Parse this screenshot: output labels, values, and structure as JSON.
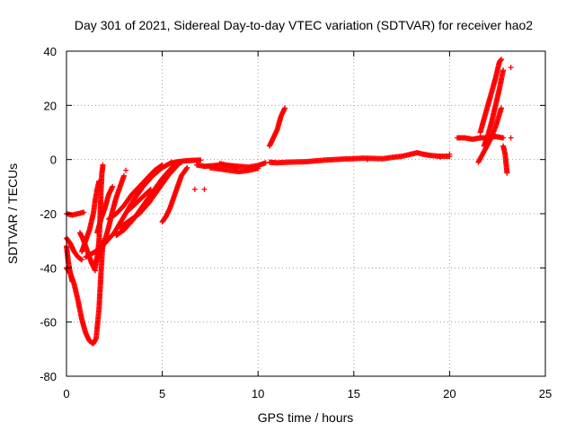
{
  "chart_data": {
    "type": "scatter",
    "title": "Day 301 of 2021, Sidereal Day-to-day VTEC variation (SDTVAR) for receiver hao2",
    "xlabel": "GPS time / hours",
    "ylabel": "SDTVAR / TECUs",
    "xlim": [
      0,
      25
    ],
    "ylim": [
      -80,
      40
    ],
    "x_ticks": [
      0,
      5,
      10,
      15,
      20,
      25
    ],
    "y_ticks": [
      -80,
      -60,
      -40,
      -20,
      0,
      20,
      40
    ],
    "x_tick_labels": [
      "0",
      "5",
      "10",
      "15",
      "20",
      "25"
    ],
    "y_tick_labels": [
      "-80",
      "-60",
      "-40",
      "-20",
      "0",
      "20",
      "40"
    ],
    "grid": true,
    "marker": "plus",
    "color": "#ff0000",
    "series": [
      {
        "tracks": [
          [
            [
              0.0,
              -20
            ],
            [
              0.3,
              -20.5
            ],
            [
              0.6,
              -20
            ],
            [
              0.9,
              -19.5
            ]
          ],
          [
            [
              0.0,
              -40
            ],
            [
              0.2,
              -42
            ],
            [
              0.4,
              -46
            ],
            [
              0.6,
              -52
            ],
            [
              0.8,
              -59
            ],
            [
              1.0,
              -64
            ],
            [
              1.2,
              -67
            ],
            [
              1.4,
              -68
            ],
            [
              1.55,
              -66
            ],
            [
              1.7,
              -55
            ],
            [
              1.8,
              -42
            ],
            [
              1.9,
              -30
            ]
          ],
          [
            [
              0.0,
              -32
            ],
            [
              0.1,
              -38
            ],
            [
              0.2,
              -42
            ],
            [
              0.3,
              -45
            ]
          ],
          [
            [
              0.0,
              -29
            ],
            [
              0.2,
              -31
            ],
            [
              0.4,
              -34
            ],
            [
              0.6,
              -36
            ],
            [
              0.8,
              -37
            ]
          ],
          [
            [
              0.7,
              -27
            ],
            [
              0.9,
              -30
            ],
            [
              1.1,
              -34
            ],
            [
              1.3,
              -38
            ],
            [
              1.5,
              -41
            ]
          ],
          [
            [
              1.5,
              -40
            ],
            [
              1.6,
              -36
            ],
            [
              1.7,
              -30
            ],
            [
              1.75,
              -22
            ],
            [
              1.8,
              -12
            ],
            [
              1.85,
              -5
            ],
            [
              1.9,
              -2
            ]
          ],
          [
            [
              1.5,
              -38
            ],
            [
              1.8,
              -34
            ],
            [
              2.0,
              -30
            ],
            [
              2.2,
              -25
            ],
            [
              2.4,
              -19
            ],
            [
              2.6,
              -14
            ],
            [
              2.8,
              -10
            ],
            [
              3.0,
              -6
            ]
          ],
          [
            [
              0.8,
              -34
            ],
            [
              1.0,
              -30
            ],
            [
              1.2,
              -26
            ],
            [
              1.4,
              -20
            ],
            [
              1.5,
              -15
            ],
            [
              1.6,
              -11
            ],
            [
              1.7,
              -8
            ]
          ],
          [
            [
              1.6,
              -27
            ],
            [
              1.8,
              -22
            ],
            [
              2.0,
              -18
            ],
            [
              2.2,
              -13
            ],
            [
              2.4,
              -10
            ]
          ],
          [
            [
              1.0,
              -36
            ],
            [
              1.5,
              -34
            ],
            [
              2.0,
              -31
            ],
            [
              2.5,
              -27
            ],
            [
              3.0,
              -21
            ],
            [
              3.5,
              -15
            ],
            [
              4.0,
              -10
            ],
            [
              4.5,
              -6
            ],
            [
              5.0,
              -3
            ],
            [
              5.5,
              -1
            ]
          ],
          [
            [
              2.6,
              -28
            ],
            [
              3.0,
              -26
            ],
            [
              3.5,
              -22
            ],
            [
              4.0,
              -17
            ],
            [
              4.5,
              -12
            ],
            [
              5.0,
              -7
            ],
            [
              5.5,
              -3
            ],
            [
              6.0,
              -1
            ]
          ],
          [
            [
              2.8,
              -25
            ],
            [
              3.2,
              -23
            ],
            [
              3.8,
              -20
            ],
            [
              4.3,
              -16
            ],
            [
              4.8,
              -11
            ],
            [
              5.3,
              -6
            ],
            [
              5.8,
              -2
            ]
          ],
          [
            [
              2.2,
              -22
            ],
            [
              2.6,
              -20
            ],
            [
              3.0,
              -17
            ],
            [
              3.4,
              -13
            ],
            [
              3.8,
              -10
            ],
            [
              4.2,
              -7
            ],
            [
              4.6,
              -4
            ],
            [
              5.0,
              -2
            ]
          ],
          [
            [
              3.2,
              -19
            ],
            [
              3.5,
              -17
            ],
            [
              3.8,
              -15
            ],
            [
              4.1,
              -13
            ],
            [
              4.4,
              -11
            ]
          ],
          [
            [
              5.0,
              -23
            ],
            [
              5.2,
              -21
            ],
            [
              5.4,
              -18
            ],
            [
              5.6,
              -14
            ],
            [
              5.8,
              -10
            ],
            [
              6.0,
              -6
            ],
            [
              6.3,
              -3
            ]
          ],
          [
            [
              5.4,
              -1.5
            ],
            [
              5.8,
              -0.8
            ],
            [
              6.2,
              -0.5
            ],
            [
              6.6,
              -0.3
            ],
            [
              7.0,
              -0.2
            ]
          ],
          [
            [
              6.8,
              -2
            ],
            [
              7.2,
              -2.5
            ],
            [
              7.6,
              -2.3
            ],
            [
              8.0,
              -2
            ],
            [
              8.5,
              -2.2
            ],
            [
              9.0,
              -2.5
            ],
            [
              9.5,
              -2.8
            ],
            [
              10.0,
              -2.2
            ],
            [
              10.4,
              -1.2
            ]
          ],
          [
            [
              7.5,
              -3
            ],
            [
              8.0,
              -3.5
            ],
            [
              8.5,
              -4
            ],
            [
              9.0,
              -4.5
            ],
            [
              9.5,
              -4
            ],
            [
              10.0,
              -3.3
            ]
          ],
          [
            [
              8.0,
              -1.5
            ],
            [
              8.3,
              -2
            ],
            [
              8.6,
              -2.5
            ],
            [
              8.9,
              -3.2
            ]
          ],
          [
            [
              10.6,
              5
            ],
            [
              10.8,
              8
            ],
            [
              11.0,
              11
            ],
            [
              11.2,
              16
            ],
            [
              11.4,
              19
            ]
          ],
          [
            [
              10.6,
              -1
            ],
            [
              11.0,
              -1.2
            ],
            [
              11.5,
              -1
            ],
            [
              12.0,
              -0.9
            ],
            [
              12.5,
              -0.8
            ],
            [
              13.0,
              -0.5
            ],
            [
              13.5,
              -0.2
            ],
            [
              14.0,
              0
            ],
            [
              14.5,
              0.2
            ],
            [
              15.0,
              0.3
            ],
            [
              15.5,
              0.5
            ],
            [
              16.0,
              0.4
            ],
            [
              16.5,
              0.3
            ],
            [
              17.0,
              0.8
            ],
            [
              17.5,
              1.2
            ],
            [
              18.0,
              2
            ],
            [
              18.3,
              2.5
            ],
            [
              18.6,
              2
            ],
            [
              19.0,
              1.5
            ],
            [
              19.5,
              1.2
            ],
            [
              20.0,
              1.2
            ]
          ],
          [
            [
              20.4,
              8
            ],
            [
              20.8,
              8
            ],
            [
              21.2,
              7.5
            ],
            [
              21.6,
              8
            ],
            [
              22.0,
              8
            ],
            [
              22.4,
              8.5
            ],
            [
              22.8,
              8
            ]
          ],
          [
            [
              21.6,
              10
            ],
            [
              21.8,
              15
            ],
            [
              22.0,
              20
            ],
            [
              22.2,
              25
            ],
            [
              22.4,
              30
            ],
            [
              22.6,
              36
            ],
            [
              22.7,
              37
            ]
          ],
          [
            [
              21.8,
              5
            ],
            [
              22.0,
              9
            ],
            [
              22.2,
              14
            ],
            [
              22.4,
              20
            ],
            [
              22.6,
              26
            ],
            [
              22.8,
              33
            ]
          ],
          [
            [
              21.5,
              -1
            ],
            [
              21.8,
              3
            ],
            [
              22.1,
              7
            ],
            [
              22.4,
              12
            ],
            [
              22.7,
              19
            ]
          ],
          [
            [
              22.8,
              5
            ],
            [
              22.9,
              2
            ],
            [
              23.0,
              -5
            ]
          ]
        ],
        "singles": [
          [
            3.1,
            -4
          ],
          [
            6.7,
            -11
          ],
          [
            7.2,
            -11
          ],
          [
            19.5,
            1
          ],
          [
            20.0,
            2
          ],
          [
            23.2,
            8
          ],
          [
            23.2,
            34
          ],
          [
            15.7,
            0
          ]
        ]
      }
    ]
  }
}
